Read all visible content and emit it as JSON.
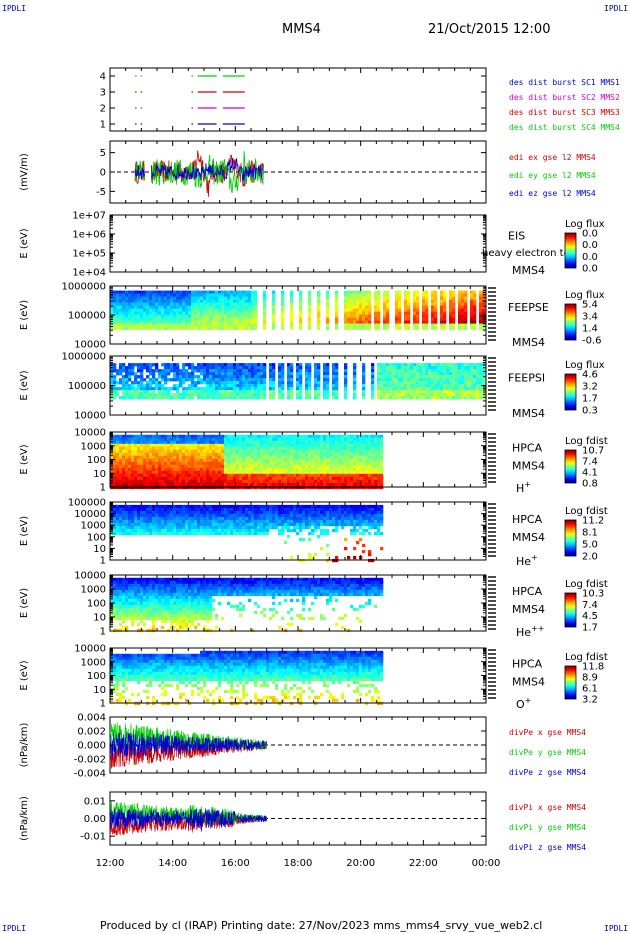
{
  "header": {
    "corner_label": "IPDLI",
    "title": "MMS4",
    "datetime": "21/Oct/2015 12:00"
  },
  "footer": {
    "text": "Produced by cl (IRAP)   Printing date: 27/Nov/2023   mms_mms4_srvy_vue_web2.cl"
  },
  "colors": {
    "mms1": "#0000cc",
    "mms2": "#cc00cc",
    "mms3": "#cc0000",
    "mms4": "#00cc00"
  },
  "x_axis": {
    "ticks": [
      "12:00",
      "14:00",
      "16:00",
      "18:00",
      "20:00",
      "22:00",
      "00:00"
    ],
    "range_hours": [
      12,
      24
    ]
  },
  "panels": [
    {
      "id": "burst",
      "ylabel": "",
      "yticks": [
        "4",
        "3",
        "2",
        "1"
      ],
      "legend": [
        {
          "text": "des dist burst SC1 MMS1",
          "color": "#0000cc"
        },
        {
          "text": "des dist burst SC2 MMS2",
          "color": "#cc00cc"
        },
        {
          "text": "des dist burst SC3 MMS3",
          "color": "#cc0000"
        },
        {
          "text": "des dist burst SC4 MMS4",
          "color": "#00cc00"
        }
      ]
    },
    {
      "id": "efield",
      "ylabel": "(mV/m)",
      "yticks": [
        "5",
        "0",
        "-5"
      ],
      "legend": [
        {
          "text": "edi ex gse l2 MMS4",
          "color": "#cc0000"
        },
        {
          "text": "edi ey gse l2 MMS4",
          "color": "#00cc00"
        },
        {
          "text": "edi ez gse l2 MMS4",
          "color": "#0000cc"
        }
      ]
    },
    {
      "id": "eis",
      "ylabel": "E (eV)",
      "yticks": [
        "1e+07",
        "1e+06",
        "1e+05",
        "1e+04"
      ],
      "instrument": [
        "EIS",
        "MMS4"
      ],
      "overlay_text": "heavy electron to",
      "colorbar_title": "Log flux",
      "colorbar_ticks": [
        "0.0",
        "0.0",
        "0.0",
        "0.0"
      ]
    },
    {
      "id": "feepse",
      "ylabel": "E (eV)",
      "yticks": [
        "1000000",
        "100000",
        "10000"
      ],
      "instrument": [
        "FEEPSE",
        "MMS4"
      ],
      "colorbar_title": "Log flux",
      "colorbar_ticks": [
        "5.4",
        "3.4",
        "1.4",
        "-0.6"
      ]
    },
    {
      "id": "feepsi",
      "ylabel": "E (eV)",
      "yticks": [
        "1000000",
        "100000",
        "10000"
      ],
      "instrument": [
        "FEEPSI",
        "MMS4"
      ],
      "colorbar_title": "Log flux",
      "colorbar_ticks": [
        "4.6",
        "3.2",
        "1.7",
        "0.3"
      ]
    },
    {
      "id": "hpca_h",
      "ylabel": "E (eV)",
      "yticks": [
        "10000",
        "1000",
        "100",
        "10",
        "1"
      ],
      "instrument": [
        "HPCA",
        "MMS4"
      ],
      "species": "H",
      "species_sup": "+",
      "colorbar_title": "Log fdist",
      "colorbar_ticks": [
        "10.7",
        "7.4",
        "4.1",
        "0.8"
      ]
    },
    {
      "id": "hpca_he",
      "ylabel": "E (eV)",
      "yticks": [
        "100000",
        "10000",
        "1000",
        "100",
        "10",
        "1"
      ],
      "instrument": [
        "HPCA",
        "MMS4"
      ],
      "species": "He",
      "species_sup": "+",
      "colorbar_title": "Log fdist",
      "colorbar_ticks": [
        "11.2",
        "8.1",
        "5.0",
        "2.0"
      ]
    },
    {
      "id": "hpca_hepp",
      "ylabel": "E (eV)",
      "yticks": [
        "10000",
        "1000",
        "100",
        "10",
        "1"
      ],
      "instrument": [
        "HPCA",
        "MMS4"
      ],
      "species": "He",
      "species_sup": "++",
      "colorbar_title": "Log fdist",
      "colorbar_ticks": [
        "10.3",
        "7.4",
        "4.5",
        "1.7"
      ]
    },
    {
      "id": "hpca_o",
      "ylabel": "E (eV)",
      "yticks": [
        "10000",
        "1000",
        "100",
        "10",
        "1"
      ],
      "instrument": [
        "HPCA",
        "MMS4"
      ],
      "species": "O",
      "species_sup": "+",
      "colorbar_title": "Log fdist",
      "colorbar_ticks": [
        "11.8",
        "8.9",
        "6.1",
        "3.2"
      ]
    },
    {
      "id": "divpe",
      "ylabel": "(nPa/km)",
      "yticks": [
        "0.004",
        "0.002",
        "0.000",
        "-0.002",
        "-0.004"
      ],
      "legend": [
        {
          "text": "divPe x gse MMS4",
          "color": "#cc0000"
        },
        {
          "text": "divPe y gse MMS4",
          "color": "#00cc00"
        },
        {
          "text": "divPe z gse MMS4",
          "color": "#0000cc"
        }
      ]
    },
    {
      "id": "divpi",
      "ylabel": "(nPa/km)",
      "yticks": [
        "0.01",
        "0.00",
        "-0.01"
      ],
      "legend": [
        {
          "text": "divPi x gse MMS4",
          "color": "#cc0000"
        },
        {
          "text": "divPi y gse MMS4",
          "color": "#00cc00"
        },
        {
          "text": "divPi z gse MMS4",
          "color": "#0000cc"
        }
      ]
    }
  ],
  "chart_data": {
    "type": "heatmap",
    "title": "MMS4",
    "x_range": [
      "12:00",
      "00:00"
    ],
    "burst_intervals": [
      {
        "spacecraft": 4,
        "intervals_hours": [
          [
            12.8,
            12.85
          ],
          [
            12.98,
            13.02
          ],
          [
            14.6,
            14.65
          ],
          [
            14.8,
            15.4
          ],
          [
            15.6,
            16.3
          ]
        ]
      },
      {
        "spacecraft": 3,
        "intervals_hours": [
          [
            12.8,
            12.85
          ],
          [
            12.98,
            13.02
          ],
          [
            14.6,
            14.65
          ],
          [
            14.8,
            15.4
          ],
          [
            15.6,
            16.3
          ]
        ]
      },
      {
        "spacecraft": 2,
        "intervals_hours": [
          [
            12.8,
            12.85
          ],
          [
            12.98,
            13.02
          ],
          [
            14.6,
            14.65
          ],
          [
            14.8,
            15.4
          ],
          [
            15.6,
            16.3
          ]
        ]
      },
      {
        "spacecraft": 1,
        "intervals_hours": [
          [
            12.8,
            12.85
          ],
          [
            12.98,
            13.02
          ],
          [
            14.6,
            14.65
          ],
          [
            14.8,
            15.4
          ],
          [
            15.6,
            16.3
          ]
        ]
      }
    ],
    "efield_range_mVm": [
      -8,
      8
    ],
    "efield_data_interval_hours": [
      12.8,
      16.9
    ],
    "divpe_range": [
      -0.004,
      0.004
    ],
    "divpi_range": [
      -0.015,
      0.015
    ],
    "divp_data_interval_hours": [
      12.0,
      17.0
    ],
    "hpca_data_interval_hours": [
      12.0,
      20.7
    ],
    "feeps_data_interval_hours": [
      12.0,
      23.9
    ]
  }
}
